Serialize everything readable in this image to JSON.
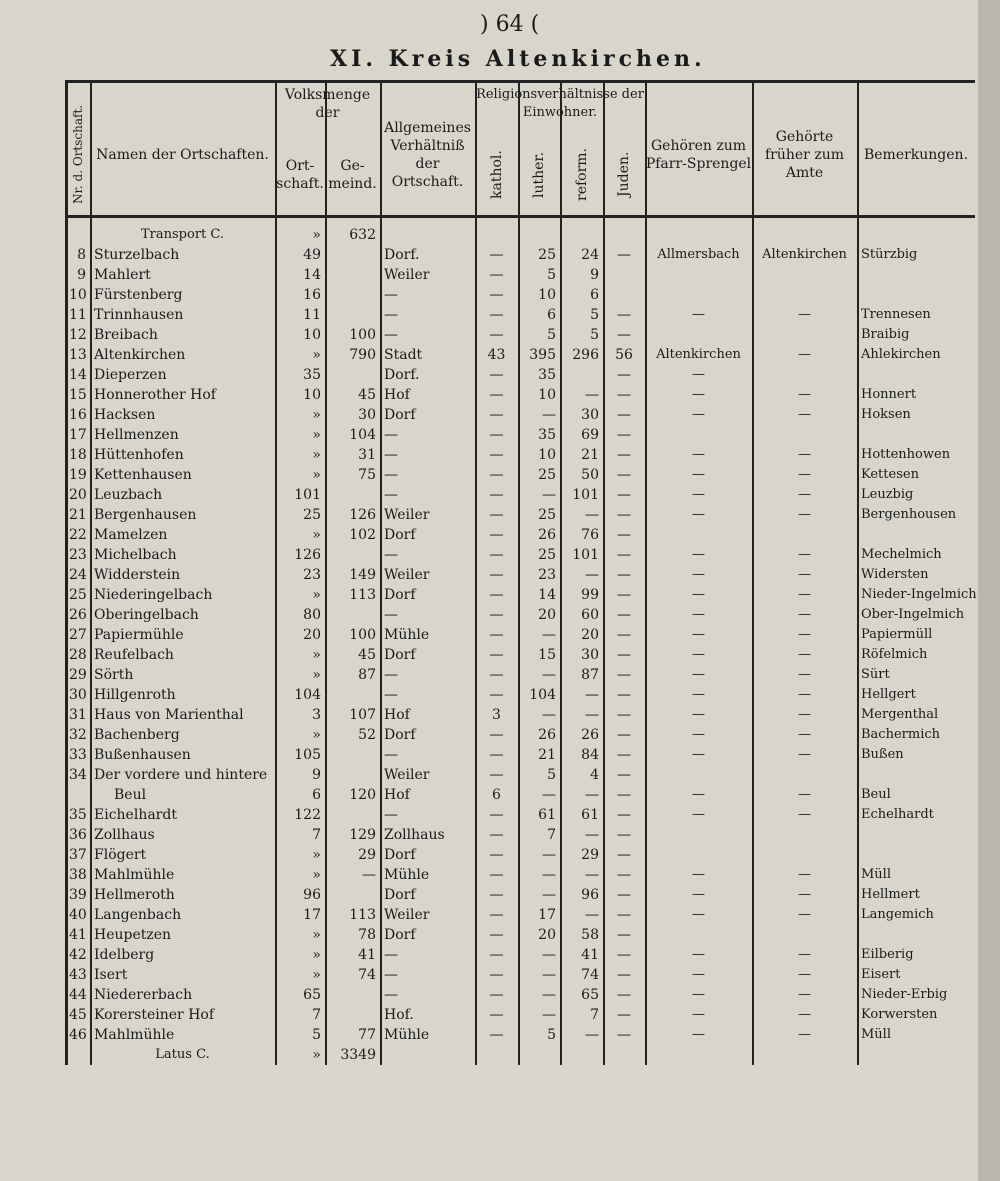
{
  "header": {
    "page": ") 64 (",
    "title": "XI. Kreis Altenkirchen."
  },
  "table": {
    "groups": [
      "Volksmenge der",
      "Religionsverhältnisse der Einwohner."
    ],
    "headers": [
      "Nr. d. Ortschaft.",
      "Namen der Ortschaften.",
      "Ort-schaft.",
      "Ge-meind.",
      "Allgemeines Verhältniß der Ortschaft.",
      "kathol.",
      "luther.",
      "reform.",
      "Juden.",
      "Gehören zum Pfarr-Sprengel",
      "Gehörte früher zum Amte",
      "Bemerkungen."
    ],
    "rows": [
      [
        null,
        "Transport C.",
        "»",
        "632",
        null,
        null,
        null,
        null,
        null,
        null,
        null,
        null
      ],
      [
        "8",
        "Sturzelbach",
        "49",
        null,
        "Dorf.",
        "—",
        "25",
        "24",
        "—",
        "Allmersbach",
        "Altenkirchen",
        "Stürzbig"
      ],
      [
        "9",
        "Mahlert",
        "14",
        null,
        "Weiler",
        "—",
        "5",
        "9",
        null,
        null,
        null,
        null
      ],
      [
        "10",
        "Fürstenberg",
        "16",
        null,
        "—",
        "—",
        "10",
        "6",
        null,
        null,
        null,
        null
      ],
      [
        "11",
        "Trinnhausen",
        "11",
        null,
        "—",
        "—",
        "6",
        "5",
        "—",
        "—",
        "—",
        "Trennesen"
      ],
      [
        "12",
        "Breibach",
        "10",
        "100",
        "—",
        "—",
        "5",
        "5",
        "—",
        null,
        null,
        "Braibig"
      ],
      [
        "13",
        "Altenkirchen",
        "»",
        "790",
        "Stadt",
        "43",
        "395",
        "296",
        "56",
        "Altenkirchen",
        "—",
        "Ahlekirchen"
      ],
      [
        "14",
        "Dieperzen",
        "35",
        null,
        "Dorf.",
        "—",
        "35",
        null,
        "—",
        "—",
        null,
        null
      ],
      [
        "15",
        "Honnerother Hof",
        "10",
        "45",
        "Hof",
        "—",
        "10",
        "—",
        "—",
        "—",
        "—",
        "Honnert"
      ],
      [
        "16",
        "Hacksen",
        "»",
        "30",
        "Dorf",
        "—",
        "—",
        "30",
        "—",
        "—",
        "—",
        "Hoksen"
      ],
      [
        "17",
        "Hellmenzen",
        "»",
        "104",
        "—",
        "—",
        "35",
        "69",
        "—",
        null,
        null,
        null
      ],
      [
        "18",
        "Hüttenhofen",
        "»",
        "31",
        "—",
        "—",
        "10",
        "21",
        "—",
        "—",
        "—",
        "Hottenhowen"
      ],
      [
        "19",
        "Kettenhausen",
        "»",
        "75",
        "—",
        "—",
        "25",
        "50",
        "—",
        "—",
        "—",
        "Kettesen"
      ],
      [
        "20",
        "Leuzbach",
        "101",
        null,
        "—",
        "—",
        "—",
        "101",
        "—",
        "—",
        "—",
        "Leuzbig"
      ],
      [
        "21",
        "Bergenhausen",
        "25",
        "126",
        "Weiler",
        "—",
        "25",
        "—",
        "—",
        "—",
        "—",
        "Bergenhousen"
      ],
      [
        "22",
        "Mamelzen",
        "»",
        "102",
        "Dorf",
        "—",
        "26",
        "76",
        "—",
        null,
        null,
        null
      ],
      [
        "23",
        "Michelbach",
        "126",
        null,
        "—",
        "—",
        "25",
        "101",
        "—",
        "—",
        "—",
        "Mechelmich"
      ],
      [
        "24",
        "Widderstein",
        "23",
        "149",
        "Weiler",
        "—",
        "23",
        "—",
        "—",
        "—",
        "—",
        "Widersten"
      ],
      [
        "25",
        "Niederingelbach",
        "»",
        "113",
        "Dorf",
        "—",
        "14",
        "99",
        "—",
        "—",
        "—",
        "Nieder-Ingelmich"
      ],
      [
        "26",
        "Oberingelbach",
        "80",
        null,
        "—",
        "—",
        "20",
        "60",
        "—",
        "—",
        "—",
        "Ober-Ingelmich"
      ],
      [
        "27",
        "Papiermühle",
        "20",
        "100",
        "Mühle",
        "—",
        "—",
        "20",
        "—",
        "—",
        "—",
        "Papiermüll"
      ],
      [
        "28",
        "Reufelbach",
        "»",
        "45",
        "Dorf",
        "—",
        "15",
        "30",
        "—",
        "—",
        "—",
        "Röfelmich"
      ],
      [
        "29",
        "Sörth",
        "»",
        "87",
        "—",
        "—",
        "—",
        "87",
        "—",
        "—",
        "—",
        "Sürt"
      ],
      [
        "30",
        "Hillgenroth",
        "104",
        null,
        "—",
        "—",
        "104",
        "—",
        "—",
        "—",
        "—",
        "Hellgert"
      ],
      [
        "31",
        "Haus von Marienthal",
        "3",
        "107",
        "Hof",
        "3",
        "—",
        "—",
        "—",
        "—",
        "—",
        "Mergenthal"
      ],
      [
        "32",
        "Bachenberg",
        "»",
        "52",
        "Dorf",
        "—",
        "26",
        "26",
        "—",
        "—",
        "—",
        "Bachermich"
      ],
      [
        "33",
        "Bußenhausen",
        "105",
        null,
        "—",
        "—",
        "21",
        "84",
        "—",
        "—",
        "—",
        "Bußen"
      ],
      [
        "34",
        "Der vordere und hintere",
        "9",
        null,
        "Weiler",
        "—",
        "5",
        "4",
        "—",
        null,
        null,
        null
      ],
      [
        null,
        "Beul",
        "6",
        "120",
        "Hof",
        "6",
        "—",
        "—",
        "—",
        "—",
        "—",
        "Beul"
      ],
      [
        "35",
        "Eichelhardt",
        "122",
        null,
        "—",
        "—",
        "61",
        "61",
        "—",
        "—",
        "—",
        "Echelhardt"
      ],
      [
        "36",
        "Zollhaus",
        "7",
        "129",
        "Zollhaus",
        "—",
        "7",
        "—",
        "—",
        null,
        null,
        null
      ],
      [
        "37",
        "Flögert",
        "»",
        "29",
        "Dorf",
        "—",
        "—",
        "29",
        "—",
        null,
        null,
        null
      ],
      [
        "38",
        "Mahlmühle",
        "»",
        "—",
        "Mühle",
        "—",
        "—",
        "—",
        "—",
        "—",
        "—",
        "Müll"
      ],
      [
        "39",
        "Hellmeroth",
        "96",
        null,
        "Dorf",
        "—",
        "—",
        "96",
        "—",
        "—",
        "—",
        "Hellmert"
      ],
      [
        "40",
        "Langenbach",
        "17",
        "113",
        "Weiler",
        "—",
        "17",
        "—",
        "—",
        "—",
        "—",
        "Langemich"
      ],
      [
        "41",
        "Heupetzen",
        "»",
        "78",
        "Dorf",
        "—",
        "20",
        "58",
        "—",
        null,
        null,
        null
      ],
      [
        "42",
        "Idelberg",
        "»",
        "41",
        "—",
        "—",
        "—",
        "41",
        "—",
        "—",
        "—",
        "Eilberig"
      ],
      [
        "43",
        "Isert",
        "»",
        "74",
        "—",
        "—",
        "—",
        "74",
        "—",
        "—",
        "—",
        "Eisert"
      ],
      [
        "44",
        "Niedererbach",
        "65",
        null,
        "—",
        "—",
        "—",
        "65",
        "—",
        "—",
        "—",
        "Nieder-Erbig"
      ],
      [
        "45",
        "Korersteiner Hof",
        "7",
        null,
        "Hof.",
        "—",
        "—",
        "7",
        "—",
        "—",
        "—",
        "Korwersten"
      ],
      [
        "46",
        "Mahlmühle",
        "5",
        "77",
        "Mühle",
        "—",
        "5",
        "—",
        "—",
        "—",
        "—",
        "Müll"
      ],
      [
        null,
        "Latus C.",
        "»",
        "3349",
        null,
        null,
        null,
        null,
        null,
        null,
        null,
        null
      ]
    ]
  }
}
